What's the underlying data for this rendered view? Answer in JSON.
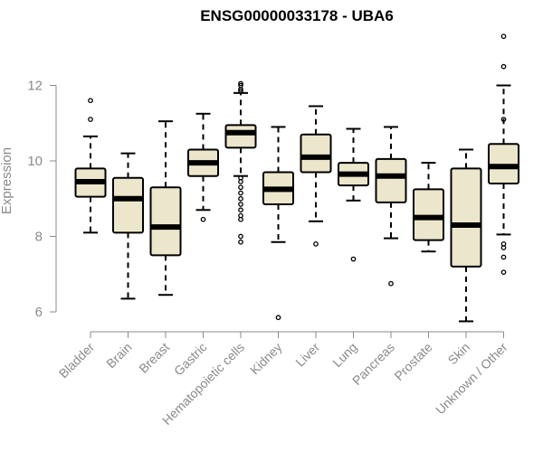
{
  "chart_data": {
    "type": "box",
    "title": "ENSG00000033178 - UBA6",
    "xlabel": "",
    "ylabel": "Expression",
    "ylim": [
      5.5,
      13.6
    ],
    "yticks": [
      6,
      8,
      10,
      12
    ],
    "grid": false,
    "categories": [
      "Bladder",
      "Brain",
      "Breast",
      "Gastric",
      "Hematopoietic cells",
      "Kidney",
      "Liver",
      "Lung",
      "Pancreas",
      "Prostate",
      "Skin",
      "Unknown / Other"
    ],
    "boxes": [
      {
        "category": "Bladder",
        "whisker_low": 8.1,
        "q1": 9.05,
        "median": 9.45,
        "q3": 9.8,
        "whisker_high": 10.65,
        "outliers": [
          11.1,
          11.6
        ]
      },
      {
        "category": "Brain",
        "whisker_low": 6.35,
        "q1": 8.1,
        "median": 9.0,
        "q3": 9.55,
        "whisker_high": 10.2,
        "outliers": []
      },
      {
        "category": "Breast",
        "whisker_low": 6.45,
        "q1": 7.5,
        "median": 8.25,
        "q3": 9.3,
        "whisker_high": 11.05,
        "outliers": []
      },
      {
        "category": "Gastric",
        "whisker_low": 8.7,
        "q1": 9.6,
        "median": 9.95,
        "q3": 10.3,
        "whisker_high": 11.25,
        "outliers": [
          8.45
        ]
      },
      {
        "category": "Hematopoietic cells",
        "whisker_low": 9.6,
        "q1": 10.35,
        "median": 10.75,
        "q3": 10.95,
        "whisker_high": 11.8,
        "outliers": [
          7.85,
          8.0,
          8.45,
          8.55,
          8.7,
          8.85,
          9.0,
          9.15,
          9.3,
          9.45,
          9.55,
          11.85,
          11.9,
          12.0,
          12.05
        ]
      },
      {
        "category": "Kidney",
        "whisker_low": 7.85,
        "q1": 8.85,
        "median": 9.25,
        "q3": 9.7,
        "whisker_high": 10.9,
        "outliers": [
          5.85
        ]
      },
      {
        "category": "Liver",
        "whisker_low": 8.4,
        "q1": 9.7,
        "median": 10.1,
        "q3": 10.7,
        "whisker_high": 11.45,
        "outliers": [
          7.8
        ]
      },
      {
        "category": "Lung",
        "whisker_low": 8.95,
        "q1": 9.35,
        "median": 9.65,
        "q3": 9.95,
        "whisker_high": 10.85,
        "outliers": [
          7.4
        ]
      },
      {
        "category": "Pancreas",
        "whisker_low": 7.95,
        "q1": 8.9,
        "median": 9.6,
        "q3": 10.05,
        "whisker_high": 10.9,
        "outliers": [
          6.75
        ]
      },
      {
        "category": "Prostate",
        "whisker_low": 7.6,
        "q1": 7.9,
        "median": 8.5,
        "q3": 9.25,
        "whisker_high": 9.95,
        "outliers": []
      },
      {
        "category": "Skin",
        "whisker_low": 5.75,
        "q1": 7.2,
        "median": 8.3,
        "q3": 9.8,
        "whisker_high": 10.3,
        "outliers": []
      },
      {
        "category": "Unknown / Other",
        "whisker_low": 8.05,
        "q1": 9.4,
        "median": 9.85,
        "q3": 10.45,
        "whisker_high": 12.0,
        "outliers": [
          7.05,
          7.45,
          7.7,
          7.8,
          11.1,
          12.5,
          13.3
        ]
      }
    ],
    "colors": {
      "box_fill": "#ece6cc",
      "box_stroke": "#000000",
      "axis": "#8a8a8a"
    }
  }
}
